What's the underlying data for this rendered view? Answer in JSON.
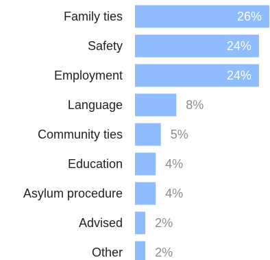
{
  "chart_data": {
    "type": "bar",
    "orientation": "horizontal",
    "title": "",
    "xlabel": "",
    "ylabel": "",
    "categories": [
      "Family ties",
      "Safety",
      "Employment",
      "Language",
      "Community ties",
      "Education",
      "Asylum procedure",
      "Advised",
      "Other"
    ],
    "values": [
      26,
      24,
      24,
      8,
      5,
      4,
      4,
      2,
      2
    ],
    "value_labels": [
      "26%",
      "24%",
      "24%",
      "8%",
      "5%",
      "4%",
      "4%",
      "2%",
      "2%"
    ],
    "unit": "%",
    "xlim": [
      0,
      26
    ],
    "grid": false,
    "legend": "none",
    "colors": {
      "bar": "#8ebcff",
      "label_inside": "#ffffff",
      "label_outside": "#8c8c8c",
      "category_text": "#222222"
    }
  }
}
